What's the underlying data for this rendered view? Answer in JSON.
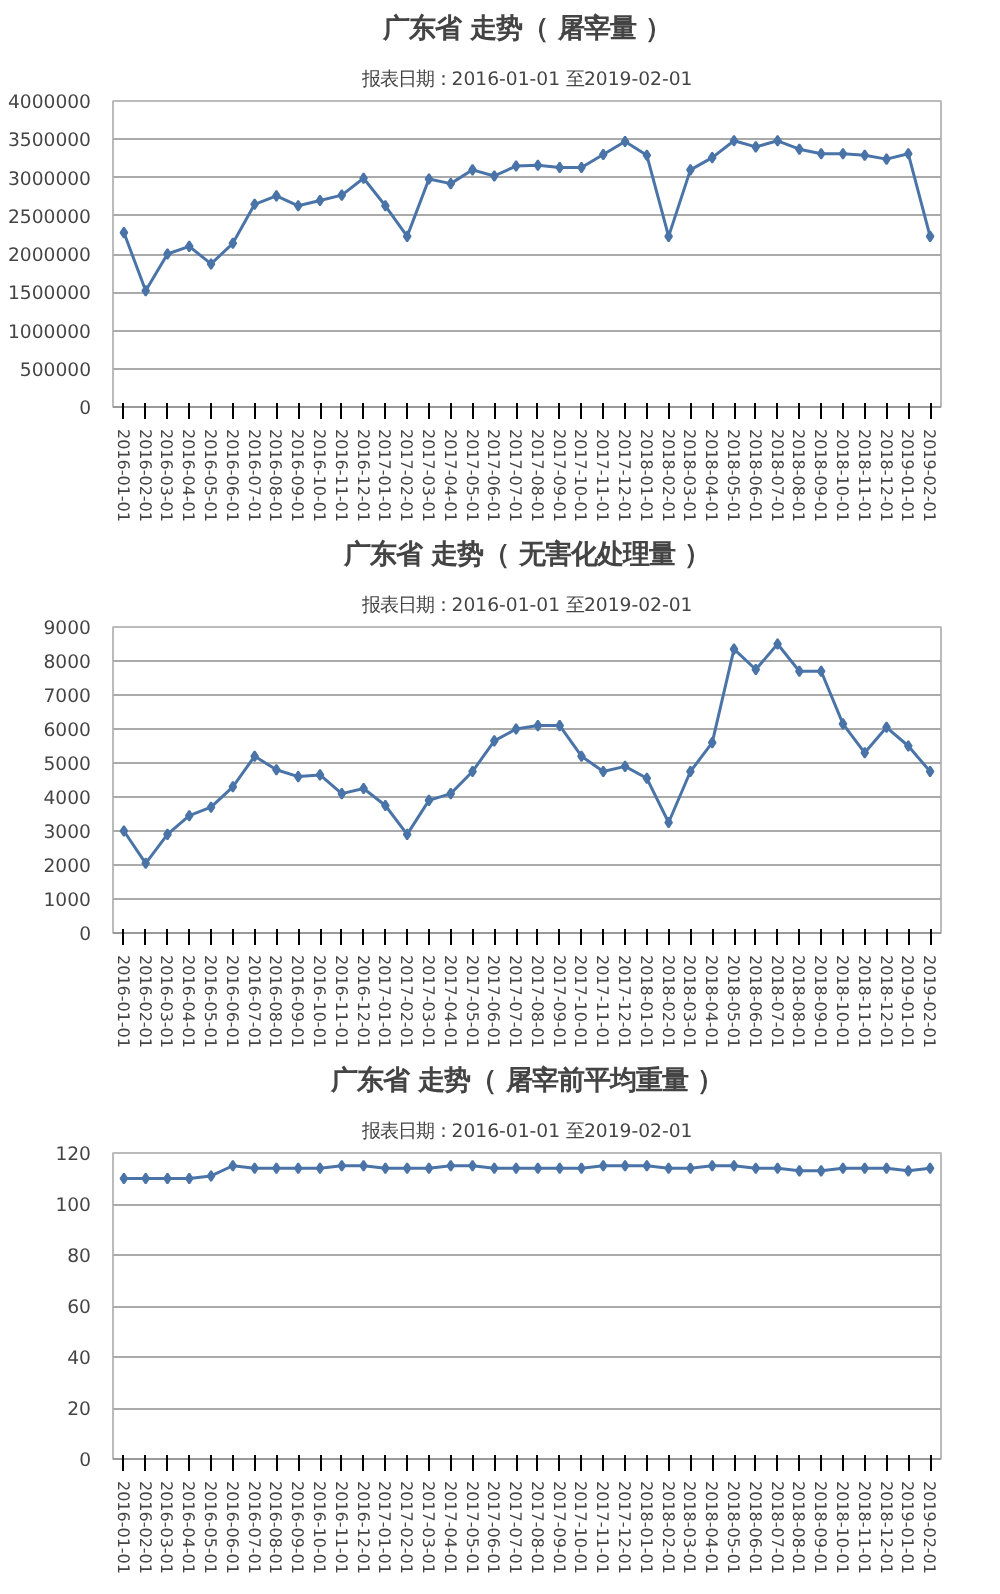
{
  "chart_data": [
    {
      "type": "line",
      "title": "广东省 走势（ 屠宰量 ）",
      "subtitle": "报表日期：2016-01-01 至2019-02-01",
      "categories": [
        "2016-01-01",
        "2016-02-01",
        "2016-03-01",
        "2016-04-01",
        "2016-05-01",
        "2016-06-01",
        "2016-07-01",
        "2016-08-01",
        "2016-09-01",
        "2016-10-01",
        "2016-11-01",
        "2016-12-01",
        "2017-01-01",
        "2017-02-01",
        "2017-03-01",
        "2017-04-01",
        "2017-05-01",
        "2017-06-01",
        "2017-07-01",
        "2017-08-01",
        "2017-09-01",
        "2017-10-01",
        "2017-11-01",
        "2017-12-01",
        "2018-01-01",
        "2018-02-01",
        "2018-03-01",
        "2018-04-01",
        "2018-05-01",
        "2018-06-01",
        "2018-07-01",
        "2018-08-01",
        "2018-09-01",
        "2018-10-01",
        "2018-11-01",
        "2018-12-01",
        "2019-01-01",
        "2019-02-01"
      ],
      "series": [
        {
          "color": "#4a74a8",
          "values": [
            2280000,
            1520000,
            2000000,
            2100000,
            1870000,
            2140000,
            2650000,
            2760000,
            2630000,
            2700000,
            2770000,
            2990000,
            2630000,
            2230000,
            2980000,
            2920000,
            3100000,
            3020000,
            3150000,
            3160000,
            3130000,
            3130000,
            3300000,
            3470000,
            3290000,
            2230000,
            3100000,
            3260000,
            3480000,
            3400000,
            3480000,
            3370000,
            3310000,
            3310000,
            3290000,
            3240000,
            3310000,
            2230000
          ]
        }
      ],
      "ylim": [
        0,
        4000000
      ],
      "yticks": [
        0,
        500000,
        1000000,
        1500000,
        2000000,
        2500000,
        3000000,
        3500000,
        4000000
      ],
      "grid": "y",
      "marker": "diamond",
      "line_style": "solid"
    },
    {
      "type": "line",
      "title": "广东省 走势（ 无害化处理量 ）",
      "subtitle": "报表日期：2016-01-01 至2019-02-01",
      "categories": [
        "2016-01-01",
        "2016-02-01",
        "2016-03-01",
        "2016-04-01",
        "2016-05-01",
        "2016-06-01",
        "2016-07-01",
        "2016-08-01",
        "2016-09-01",
        "2016-10-01",
        "2016-11-01",
        "2016-12-01",
        "2017-01-01",
        "2017-02-01",
        "2017-03-01",
        "2017-04-01",
        "2017-05-01",
        "2017-06-01",
        "2017-07-01",
        "2017-08-01",
        "2017-09-01",
        "2017-10-01",
        "2017-11-01",
        "2017-12-01",
        "2018-01-01",
        "2018-02-01",
        "2018-03-01",
        "2018-04-01",
        "2018-05-01",
        "2018-06-01",
        "2018-07-01",
        "2018-08-01",
        "2018-09-01",
        "2018-10-01",
        "2018-11-01",
        "2018-12-01",
        "2019-01-01",
        "2019-02-01"
      ],
      "series": [
        {
          "color": "#4a74a8",
          "values": [
            3000,
            2050,
            2900,
            3450,
            3700,
            4300,
            5200,
            4800,
            4600,
            4650,
            4100,
            4250,
            3750,
            2900,
            3900,
            4100,
            4750,
            5650,
            6000,
            6100,
            6100,
            5200,
            4750,
            4900,
            4550,
            3250,
            4750,
            5600,
            8350,
            7750,
            8500,
            7700,
            7700,
            6150,
            5300,
            6050,
            5500,
            4750
          ]
        }
      ],
      "ylim": [
        0,
        9000
      ],
      "yticks": [
        0,
        1000,
        2000,
        3000,
        4000,
        5000,
        6000,
        7000,
        8000,
        9000
      ],
      "grid": "y",
      "marker": "diamond",
      "line_style": "solid"
    },
    {
      "type": "line",
      "title": "广东省 走势（ 屠宰前平均重量 ）",
      "subtitle": "报表日期：2016-01-01 至2019-02-01",
      "categories": [
        "2016-01-01",
        "2016-02-01",
        "2016-03-01",
        "2016-04-01",
        "2016-05-01",
        "2016-06-01",
        "2016-07-01",
        "2016-08-01",
        "2016-09-01",
        "2016-10-01",
        "2016-11-01",
        "2016-12-01",
        "2017-01-01",
        "2017-02-01",
        "2017-03-01",
        "2017-04-01",
        "2017-05-01",
        "2017-06-01",
        "2017-07-01",
        "2017-08-01",
        "2017-09-01",
        "2017-10-01",
        "2017-11-01",
        "2017-12-01",
        "2018-01-01",
        "2018-02-01",
        "2018-03-01",
        "2018-04-01",
        "2018-05-01",
        "2018-06-01",
        "2018-07-01",
        "2018-08-01",
        "2018-09-01",
        "2018-10-01",
        "2018-11-01",
        "2018-12-01",
        "2019-01-01",
        "2019-02-01"
      ],
      "series": [
        {
          "color": "#4a74a8",
          "values": [
            110,
            110,
            110,
            110,
            111,
            115,
            114,
            114,
            114,
            114,
            115,
            115,
            114,
            114,
            114,
            115,
            115,
            114,
            114,
            114,
            114,
            114,
            115,
            115,
            115,
            114,
            114,
            115,
            115,
            114,
            114,
            113,
            113,
            114,
            114,
            114,
            113,
            114
          ]
        }
      ],
      "ylim": [
        0,
        120
      ],
      "yticks": [
        0,
        20,
        40,
        60,
        80,
        100,
        120
      ],
      "grid": "y",
      "marker": "diamond",
      "line_style": "solid"
    }
  ]
}
